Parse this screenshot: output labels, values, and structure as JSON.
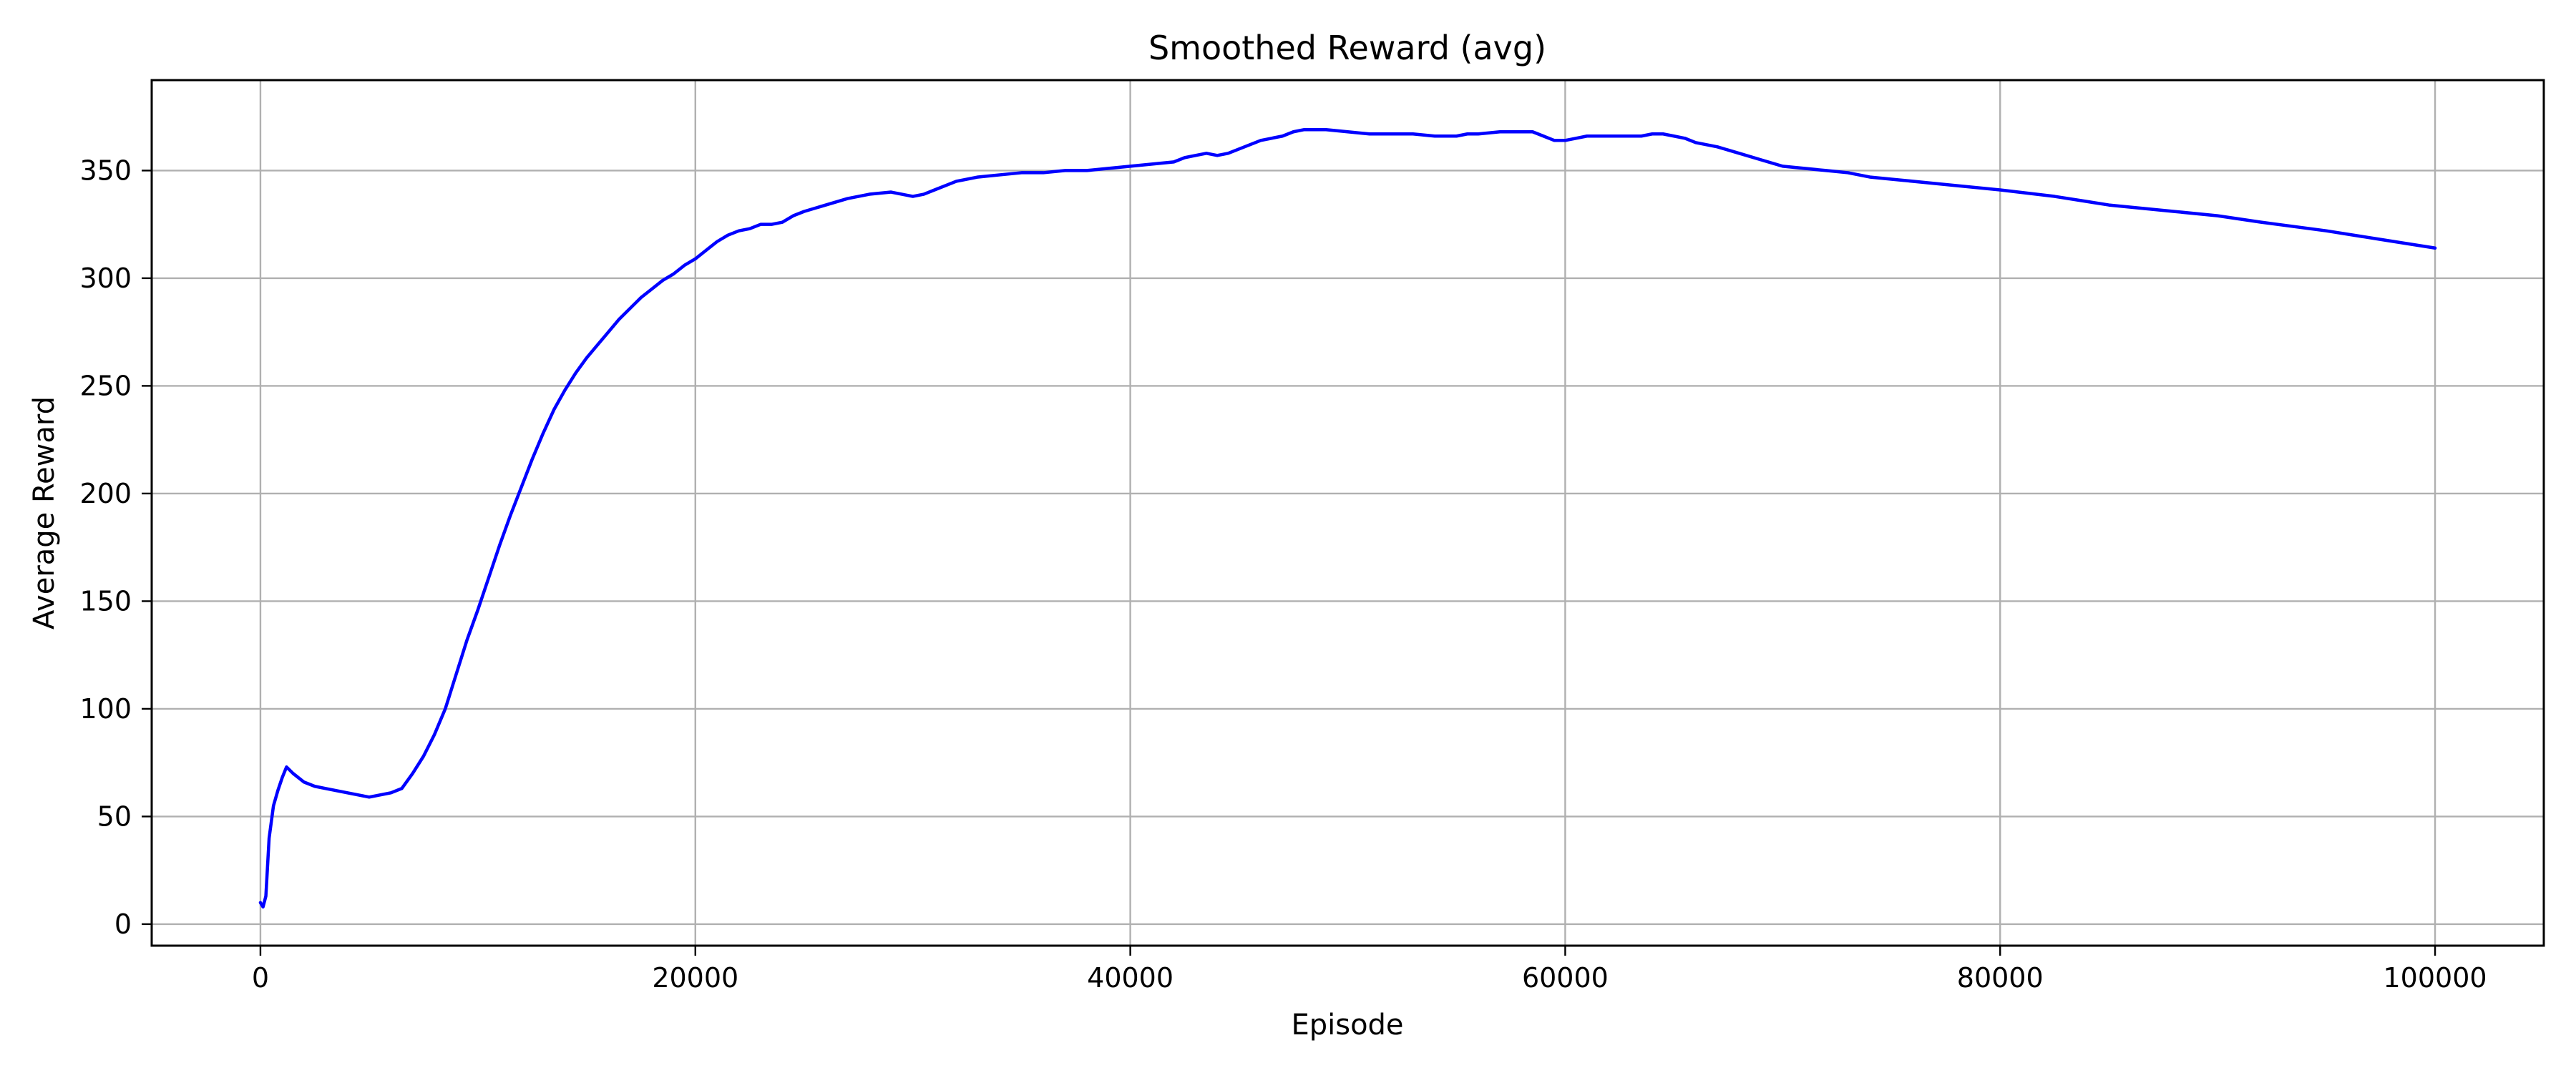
{
  "chart_data": {
    "type": "line",
    "title": "Smoothed Reward (avg)",
    "xlabel": "Episode",
    "ylabel": "Average Reward",
    "xlim": [
      -5000,
      105000
    ],
    "ylim": [
      -10,
      392
    ],
    "x_ticks": [
      0,
      20000,
      40000,
      60000,
      80000,
      100000
    ],
    "x_tick_labels": [
      "0",
      "20000",
      "40000",
      "60000",
      "80000",
      "100000"
    ],
    "y_ticks": [
      0,
      50,
      100,
      150,
      200,
      250,
      300,
      350
    ],
    "y_tick_labels": [
      "0",
      "50",
      "100",
      "150",
      "200",
      "250",
      "300",
      "350"
    ],
    "grid": true,
    "series": [
      {
        "color": "#0000ff",
        "x": [
          0,
          120,
          250,
          400,
          600,
          800,
          1000,
          1200,
          1500,
          2000,
          2500,
          3000,
          3500,
          4000,
          4500,
          5000,
          5500,
          6000,
          6500,
          7000,
          7500,
          8000,
          8500,
          9000,
          9500,
          10000,
          10500,
          11000,
          11500,
          12000,
          12500,
          13000,
          13500,
          14000,
          14500,
          15000,
          15500,
          16000,
          16500,
          17000,
          17500,
          18000,
          18500,
          19000,
          19500,
          20000,
          20500,
          21000,
          21500,
          22000,
          22500,
          23000,
          23500,
          24000,
          24500,
          25000,
          26000,
          27000,
          28000,
          29000,
          29500,
          30000,
          30500,
          31000,
          32000,
          33000,
          34000,
          35000,
          36000,
          37000,
          38000,
          39000,
          40000,
          41000,
          42000,
          42500,
          43000,
          43500,
          44000,
          44500,
          45000,
          45500,
          46000,
          46500,
          47000,
          47500,
          48000,
          49000,
          50000,
          51000,
          52000,
          53000,
          54000,
          55000,
          55500,
          56000,
          57000,
          58000,
          58500,
          59000,
          59500,
          60000,
          60500,
          61000,
          62000,
          63000,
          63500,
          64000,
          64500,
          65000,
          65500,
          66000,
          67000,
          68000,
          69000,
          70000,
          71000,
          72000,
          73000,
          74000,
          75000,
          77000,
          80000,
          82500,
          85000,
          88000,
          90000,
          92000,
          95000,
          97500,
          100000
        ],
        "y": [
          10,
          8,
          13,
          40,
          55,
          62,
          68,
          73,
          70,
          66,
          64,
          63,
          62,
          61,
          60,
          59,
          60,
          61,
          63,
          70,
          78,
          88,
          100,
          116,
          132,
          146,
          161,
          176,
          190,
          203,
          216,
          228,
          239,
          248,
          256,
          263,
          269,
          275,
          281,
          286,
          291,
          295,
          299,
          302,
          306,
          309,
          313,
          317,
          320,
          322,
          323,
          325,
          325,
          326,
          329,
          331,
          334,
          337,
          339,
          340,
          339,
          338,
          339,
          341,
          345,
          347,
          348,
          349,
          349,
          350,
          350,
          351,
          352,
          353,
          354,
          356,
          357,
          358,
          357,
          358,
          360,
          362,
          364,
          365,
          366,
          368,
          369,
          369,
          368,
          367,
          367,
          367,
          366,
          366,
          367,
          367,
          368,
          368,
          368,
          366,
          364,
          364,
          365,
          366,
          366,
          366,
          366,
          367,
          367,
          366,
          365,
          363,
          361,
          358,
          355,
          352,
          351,
          350,
          349,
          347,
          346,
          344,
          341,
          338,
          334,
          331,
          329,
          326,
          322,
          318,
          314
        ]
      }
    ]
  }
}
